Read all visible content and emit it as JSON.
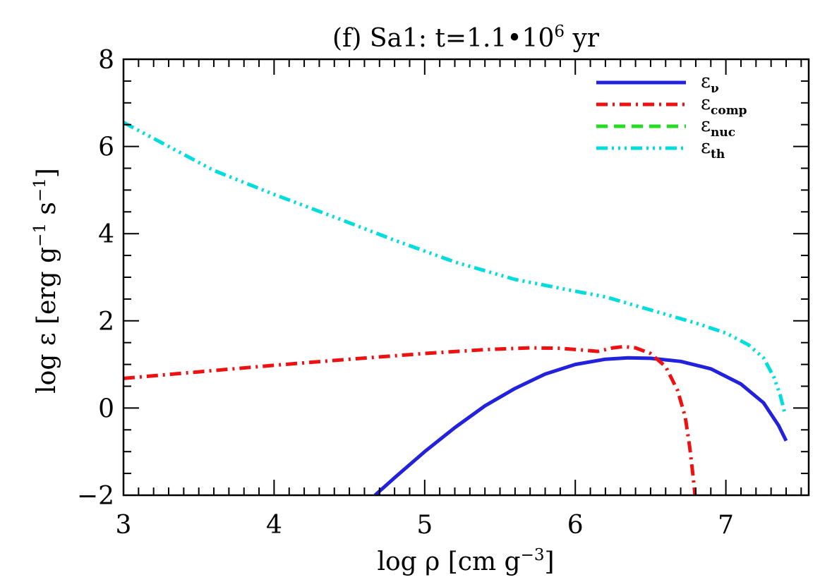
{
  "chart_data": {
    "type": "line",
    "title": "(f) Sa1: t=1.1•10",
    "title_sup": "6",
    "title_tail": " yr",
    "xlabel_main": "log ρ [cm g",
    "xlabel_sup": "−3",
    "xlabel_tail": "]",
    "ylabel_main": "log ε [erg g",
    "ylabel_sup1": "−1",
    "ylabel_mid": " s",
    "ylabel_sup2": "−1",
    "ylabel_tail": "]",
    "xlim": [
      3,
      7.55
    ],
    "ylim": [
      -2,
      8
    ],
    "xticks": [
      3,
      4,
      5,
      6,
      7
    ],
    "xtick_labels": [
      "3",
      "4",
      "5",
      "6",
      "7"
    ],
    "yticks": [
      -2,
      0,
      2,
      4,
      6,
      8
    ],
    "ytick_labels": [
      "−2",
      "0",
      "2",
      "4",
      "6",
      "8"
    ],
    "grid": false,
    "legend_position": "top-right",
    "series": [
      {
        "name": "nu",
        "label_base": "ε",
        "label_sub": "ν",
        "color": "#2222dd",
        "dash": "solid",
        "x": [
          4.67,
          4.8,
          5.0,
          5.2,
          5.4,
          5.6,
          5.8,
          6.0,
          6.2,
          6.35,
          6.5,
          6.7,
          6.9,
          7.1,
          7.25,
          7.35,
          7.4
        ],
        "y": [
          -2.0,
          -1.6,
          -1.0,
          -0.45,
          0.05,
          0.45,
          0.78,
          1.0,
          1.12,
          1.15,
          1.14,
          1.07,
          0.9,
          0.55,
          0.12,
          -0.4,
          -0.75
        ]
      },
      {
        "name": "comp",
        "label_base": "ε",
        "label_sub": "comp",
        "color": "#ee1111",
        "dash": "dashdot",
        "x": [
          3.0,
          3.5,
          4.0,
          4.5,
          5.0,
          5.4,
          5.7,
          5.9,
          6.05,
          6.15,
          6.25,
          6.32,
          6.4,
          6.5,
          6.6,
          6.68,
          6.73,
          6.76,
          6.78,
          6.795
        ],
        "y": [
          0.68,
          0.83,
          0.98,
          1.12,
          1.25,
          1.34,
          1.38,
          1.37,
          1.33,
          1.3,
          1.38,
          1.41,
          1.38,
          1.25,
          0.95,
          0.4,
          -0.2,
          -0.9,
          -1.5,
          -2.0
        ]
      },
      {
        "name": "nuc",
        "label_base": "ε",
        "label_sub": "nuc",
        "color": "#22dd22",
        "dash": "dashed",
        "x": [],
        "y": []
      },
      {
        "name": "th",
        "label_base": "ε",
        "label_sub": "th",
        "color": "#00dddd",
        "dash": "dashdotdotdot",
        "x": [
          3.0,
          3.3,
          3.6,
          4.0,
          4.4,
          4.8,
          5.2,
          5.6,
          6.0,
          6.2,
          6.5,
          6.8,
          7.0,
          7.15,
          7.25,
          7.32,
          7.36,
          7.39
        ],
        "y": [
          6.55,
          6.0,
          5.45,
          4.9,
          4.38,
          3.85,
          3.35,
          2.95,
          2.68,
          2.55,
          2.25,
          1.95,
          1.72,
          1.45,
          1.15,
          0.7,
          0.3,
          -0.1
        ]
      }
    ]
  }
}
